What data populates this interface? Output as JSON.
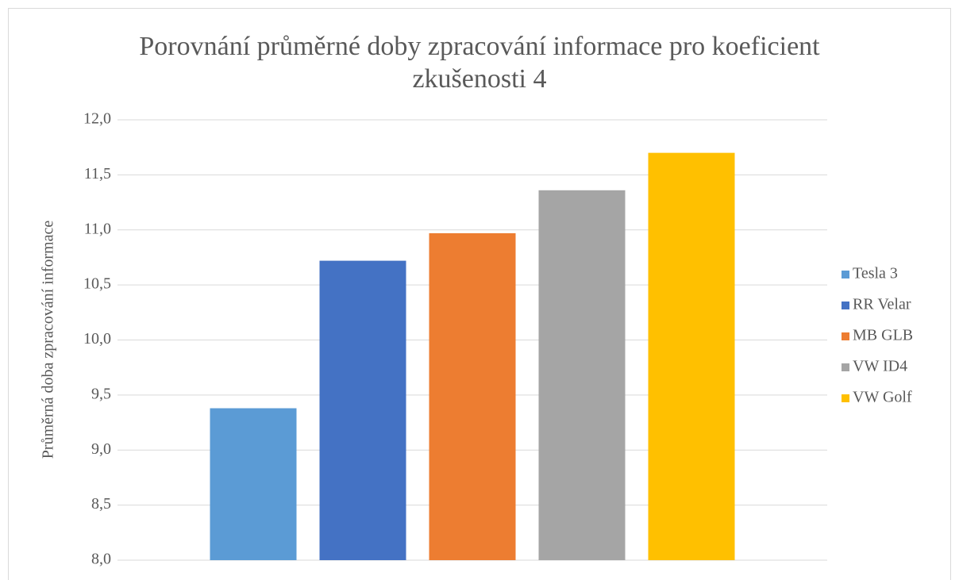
{
  "chart_data": {
    "type": "bar",
    "title": "Porovnání průměrné doby zpracování informace pro koeficient zkušenosti 4",
    "y_label": "Průměrná doba zpracování informace",
    "categories": [
      null
    ],
    "series": [
      {
        "name": "Tesla 3",
        "color": "#5b9bd5",
        "values": [
          9.38
        ]
      },
      {
        "name": "RR Velar",
        "color": "#4472c4",
        "values": [
          10.72
        ]
      },
      {
        "name": "MB GLB",
        "color": "#ed7d31",
        "values": [
          10.97
        ]
      },
      {
        "name": "VW ID4",
        "color": "#a5a5a5",
        "values": [
          11.36
        ]
      },
      {
        "name": "VW Golf",
        "color": "#ffc000",
        "values": [
          11.7
        ]
      }
    ],
    "ylim": [
      8,
      12
    ],
    "yticks": [
      {
        "value": 8,
        "label": "8,0"
      },
      {
        "value": 8.5,
        "label": "8,5"
      },
      {
        "value": 9,
        "label": "9,0"
      },
      {
        "value": 9.5,
        "label": "9,5"
      },
      {
        "value": 10,
        "label": "10,0"
      },
      {
        "value": 10.5,
        "label": "10,5"
      },
      {
        "value": 11,
        "label": "11,0"
      },
      {
        "value": 11.5,
        "label": "11,5"
      },
      {
        "value": 12,
        "label": "12,0"
      }
    ],
    "grid": true,
    "legend": "right"
  }
}
